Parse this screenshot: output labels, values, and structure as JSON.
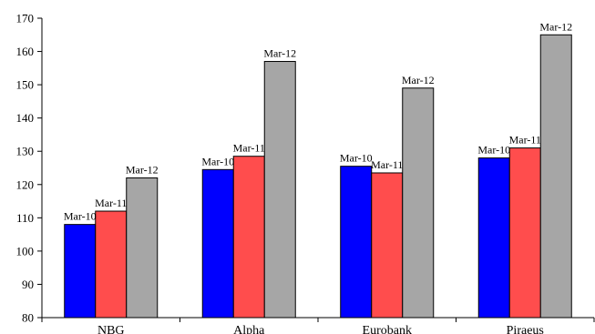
{
  "chart_data": {
    "type": "bar",
    "categories": [
      "NBG",
      "Alpha",
      "Eurobank",
      "Piraeus"
    ],
    "series": [
      {
        "name": "Mar-10",
        "color": "#0000ff",
        "values": [
          108,
          124.5,
          125.5,
          128
        ]
      },
      {
        "name": "Mar-11",
        "color": "#ff4d4d",
        "values": [
          112,
          128.5,
          123.5,
          131
        ]
      },
      {
        "name": "Mar-12",
        "color": "#a6a6a6",
        "values": [
          122,
          157,
          149,
          165
        ]
      }
    ],
    "ylim": [
      80,
      170
    ],
    "yticks": [
      80,
      90,
      100,
      110,
      120,
      130,
      140,
      150,
      160,
      170
    ],
    "grid": false,
    "data_labels": "series name above each bar"
  }
}
